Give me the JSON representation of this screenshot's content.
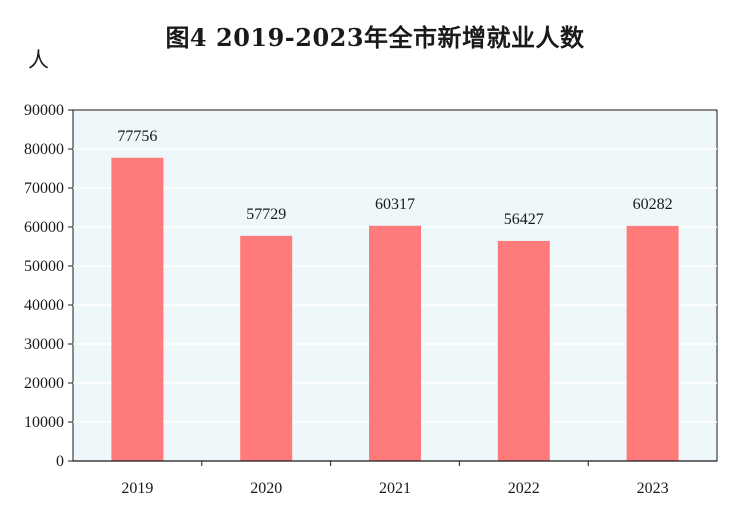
{
  "chart_data": {
    "type": "bar",
    "title": "图4  2019-2023年全市新增就业人数",
    "ylabel": "人",
    "xlabel": "",
    "categories": [
      "2019",
      "2020",
      "2021",
      "2022",
      "2023"
    ],
    "values": [
      77756,
      57729,
      60317,
      56427,
      60282
    ],
    "ylim": [
      0,
      90000
    ],
    "yticks": [
      "0",
      "10000",
      "20000",
      "30000",
      "40000",
      "50000",
      "60000",
      "70000",
      "80000",
      "90000"
    ],
    "grid": true,
    "bar_color": "#ff7b7b",
    "plot_background": "#eef7f9",
    "grid_color": "#ffffff"
  }
}
